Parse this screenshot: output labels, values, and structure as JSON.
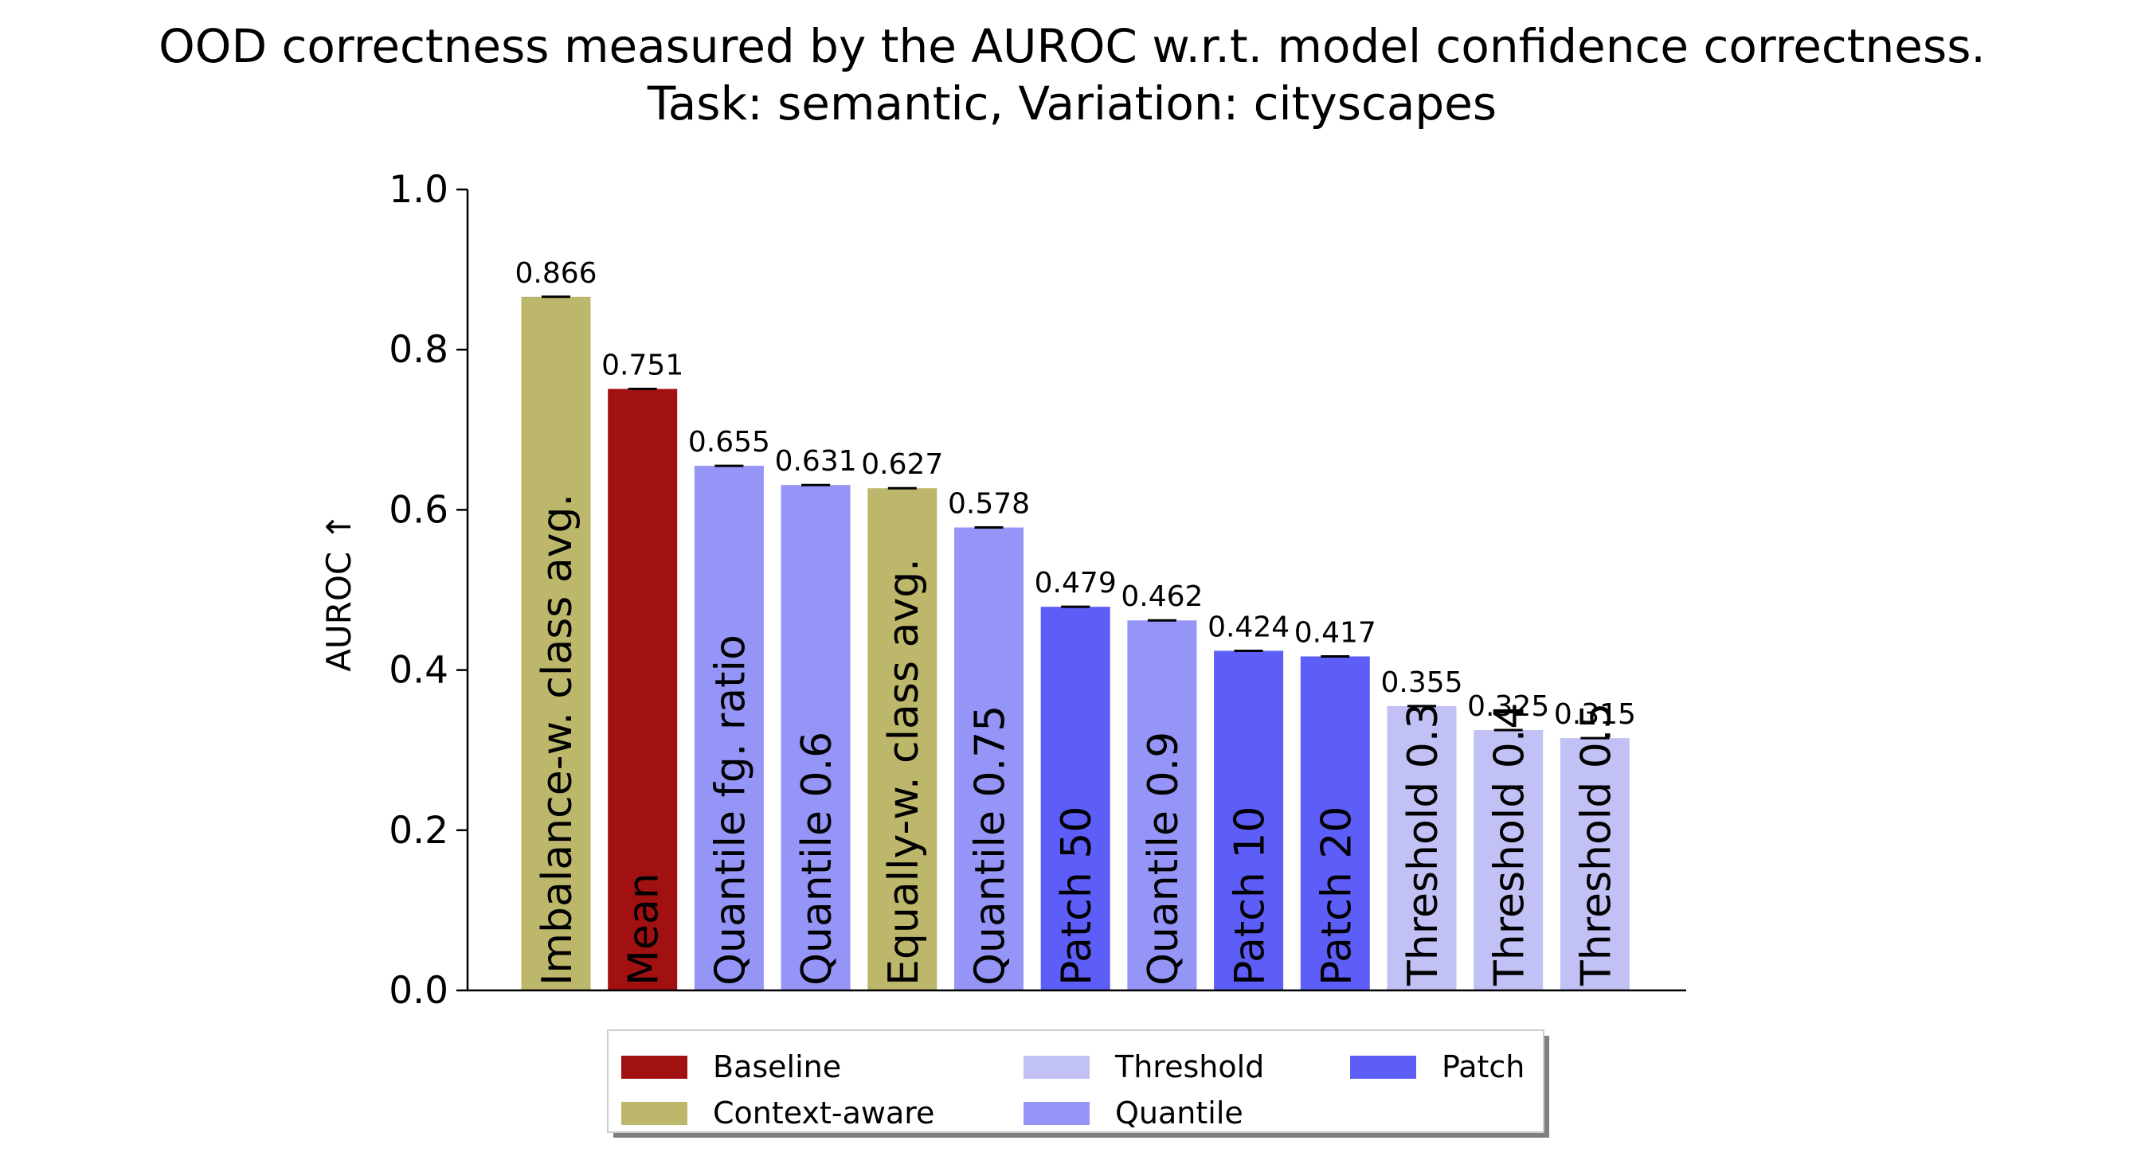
{
  "chart_data": {
    "type": "bar",
    "title": "OOD correctness measured by the AUROC w.r.t. model confidence correctness.",
    "subtitle": "Task: semantic, Variation: cityscapes",
    "xlabel": "",
    "ylabel": "AUROC ↑",
    "ylim": [
      0,
      1.0
    ],
    "yticks": [
      "0.0",
      "0.2",
      "0.4",
      "0.6",
      "0.8",
      "1.0"
    ],
    "grid": false,
    "legend_position": "bottom-center",
    "categories": [
      "Imbalance-w. class avg.",
      "Mean",
      "Quantile fg. ratio",
      "Quantile 0.6",
      "Equally-w. class avg.",
      "Quantile 0.75",
      "Patch 50",
      "Quantile 0.9",
      "Patch 10",
      "Patch 20",
      "Threshold 0.3",
      "Threshold 0.4",
      "Threshold 0.5"
    ],
    "values": [
      0.866,
      0.751,
      0.655,
      0.631,
      0.627,
      0.578,
      0.479,
      0.462,
      0.424,
      0.417,
      0.355,
      0.325,
      0.315
    ],
    "value_labels": [
      "0.866",
      "0.751",
      "0.655",
      "0.631",
      "0.627",
      "0.578",
      "0.479",
      "0.462",
      "0.424",
      "0.417",
      "0.355",
      "0.325",
      "0.315"
    ],
    "groups": [
      "Context-aware",
      "Baseline",
      "Quantile",
      "Quantile",
      "Context-aware",
      "Quantile",
      "Patch",
      "Quantile",
      "Patch",
      "Patch",
      "Threshold",
      "Threshold",
      "Threshold"
    ],
    "group_colors": {
      "Baseline": "#a11111",
      "Context-aware": "#bdb76b",
      "Threshold": "#c1c1f5",
      "Quantile": "#9595f7",
      "Patch": "#5d5df7"
    },
    "legend": [
      {
        "name": "Baseline",
        "color": "#a11111"
      },
      {
        "name": "Context-aware",
        "color": "#bdb76b"
      },
      {
        "name": "Threshold",
        "color": "#c1c1f5"
      },
      {
        "name": "Quantile",
        "color": "#9595f7"
      },
      {
        "name": "Patch",
        "color": "#5d5df7"
      }
    ]
  }
}
